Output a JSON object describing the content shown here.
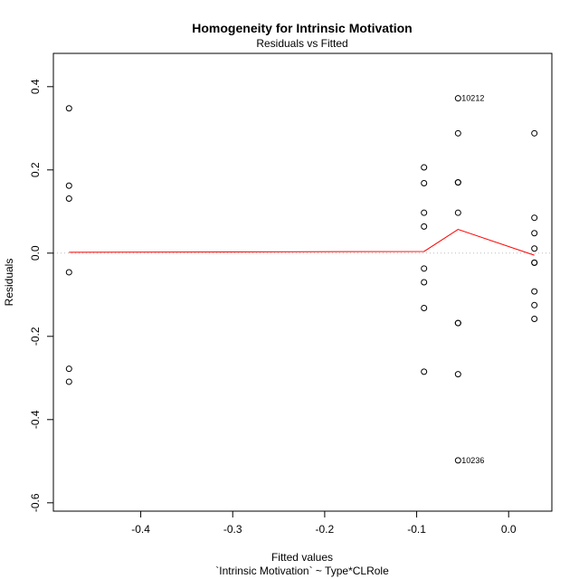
{
  "chart_data": {
    "type": "scatter",
    "title": "Homogeneity for Intrinsic Motivation",
    "subtitle": "Residuals vs Fitted",
    "xlabel": "Fitted values",
    "xlabel_sub": "`Intrinsic Motivation` ~ Type*CLRole",
    "ylabel": "Residuals",
    "xlim": [
      -0.495,
      0.047
    ],
    "ylim": [
      -0.62,
      0.48
    ],
    "x_ticks": [
      -0.4,
      -0.3,
      -0.2,
      -0.1,
      0.0
    ],
    "x_tick_labels": [
      "-0.4",
      "-0.3",
      "-0.2",
      "-0.1",
      "0.0"
    ],
    "y_ticks": [
      -0.6,
      -0.4,
      -0.2,
      0.0,
      0.2,
      0.4
    ],
    "y_tick_labels": [
      "-0.6",
      "-0.4",
      "-0.2",
      "0.0",
      "0.2",
      "0.4"
    ],
    "grid": false,
    "reference_line": {
      "y": 0,
      "style": "dotted",
      "color": "#bbbbbb"
    },
    "points": [
      {
        "x": -0.478,
        "y": 0.348
      },
      {
        "x": -0.478,
        "y": 0.162
      },
      {
        "x": -0.478,
        "y": 0.131
      },
      {
        "x": -0.478,
        "y": -0.046
      },
      {
        "x": -0.478,
        "y": -0.278
      },
      {
        "x": -0.478,
        "y": -0.309
      },
      {
        "x": -0.092,
        "y": 0.206
      },
      {
        "x": -0.092,
        "y": 0.168
      },
      {
        "x": -0.092,
        "y": 0.097
      },
      {
        "x": -0.092,
        "y": 0.064
      },
      {
        "x": -0.092,
        "y": -0.037
      },
      {
        "x": -0.092,
        "y": -0.07
      },
      {
        "x": -0.092,
        "y": -0.132
      },
      {
        "x": -0.092,
        "y": -0.285
      },
      {
        "x": -0.055,
        "y": 0.372
      },
      {
        "x": -0.055,
        "y": 0.288
      },
      {
        "x": -0.055,
        "y": 0.17
      },
      {
        "x": -0.055,
        "y": 0.17
      },
      {
        "x": -0.055,
        "y": 0.097
      },
      {
        "x": -0.055,
        "y": -0.168
      },
      {
        "x": -0.055,
        "y": -0.168
      },
      {
        "x": -0.055,
        "y": -0.291
      },
      {
        "x": -0.055,
        "y": -0.498
      },
      {
        "x": 0.028,
        "y": 0.288
      },
      {
        "x": 0.028,
        "y": 0.085
      },
      {
        "x": 0.028,
        "y": 0.048
      },
      {
        "x": 0.028,
        "y": 0.011
      },
      {
        "x": 0.028,
        "y": -0.023
      },
      {
        "x": 0.028,
        "y": -0.023
      },
      {
        "x": 0.028,
        "y": -0.092
      },
      {
        "x": 0.028,
        "y": -0.125
      },
      {
        "x": 0.028,
        "y": -0.158
      }
    ],
    "point_labels": [
      {
        "x": -0.055,
        "y": 0.372,
        "text": "10212"
      },
      {
        "x": -0.055,
        "y": -0.498,
        "text": "10236"
      }
    ],
    "smooth_line": {
      "color": "#ff0000",
      "x": [
        -0.478,
        -0.092,
        -0.055,
        0.028
      ],
      "y": [
        0.002,
        0.004,
        0.057,
        -0.005
      ]
    }
  }
}
